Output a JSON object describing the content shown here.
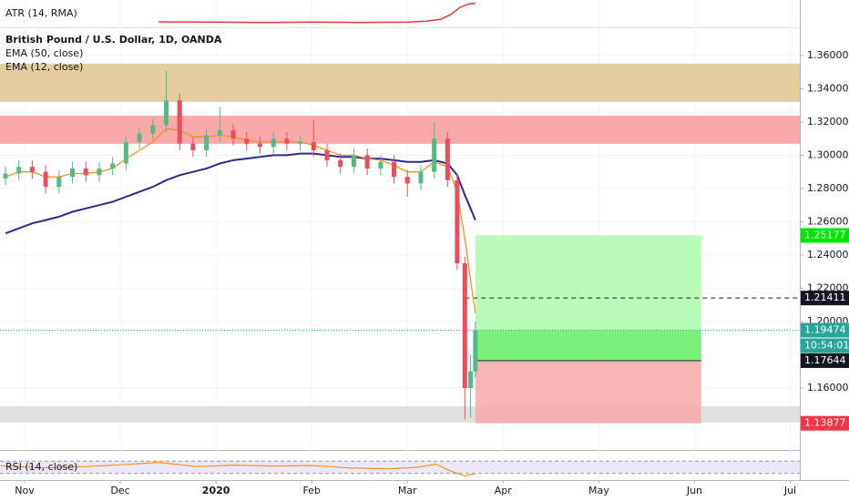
{
  "chart_data": {
    "type": "candlestick",
    "title": "British Pound / U.S. Dollar, 1D, OANDA",
    "x": [
      -0.2,
      -0.06,
      0.08,
      0.22,
      0.36,
      0.5,
      0.64,
      0.78,
      0.92,
      1.06,
      1.2,
      1.34,
      1.48,
      1.62,
      1.76,
      1.9,
      2.04,
      2.18,
      2.32,
      2.46,
      2.6,
      2.74,
      2.88,
      3.02,
      3.16,
      3.3,
      3.44,
      3.58,
      3.72,
      3.86,
      4.0,
      4.14,
      4.28,
      4.42,
      4.52,
      4.6,
      4.66,
      4.71
    ],
    "open": [
      1.286,
      1.289,
      1.293,
      1.29,
      1.281,
      1.287,
      1.292,
      1.288,
      1.292,
      1.295,
      1.308,
      1.313,
      1.318,
      1.333,
      1.307,
      1.303,
      1.312,
      1.315,
      1.31,
      1.307,
      1.305,
      1.31,
      1.307,
      1.308,
      1.303,
      1.297,
      1.293,
      1.3,
      1.292,
      1.296,
      1.287,
      1.283,
      1.29,
      1.31,
      1.285,
      1.235,
      1.16,
      1.17
    ],
    "high": [
      1.293,
      1.297,
      1.297,
      1.294,
      1.291,
      1.296,
      1.296,
      1.296,
      1.299,
      1.312,
      1.317,
      1.322,
      1.351,
      1.337,
      1.311,
      1.316,
      1.329,
      1.319,
      1.314,
      1.311,
      1.314,
      1.314,
      1.312,
      1.321,
      1.307,
      1.301,
      1.304,
      1.304,
      1.3,
      1.3,
      1.291,
      1.294,
      1.32,
      1.314,
      1.289,
      1.239,
      1.18,
      1.2
    ],
    "low": [
      1.282,
      1.285,
      1.286,
      1.277,
      1.277,
      1.283,
      1.284,
      1.284,
      1.288,
      1.291,
      1.304,
      1.309,
      1.314,
      1.303,
      1.299,
      1.299,
      1.308,
      1.306,
      1.303,
      1.301,
      1.301,
      1.303,
      1.303,
      1.299,
      1.293,
      1.289,
      1.289,
      1.288,
      1.288,
      1.283,
      1.275,
      1.279,
      1.286,
      1.281,
      1.231,
      1.141,
      1.142,
      1.166
    ],
    "close": [
      1.289,
      1.293,
      1.29,
      1.281,
      1.287,
      1.292,
      1.288,
      1.292,
      1.295,
      1.308,
      1.313,
      1.318,
      1.333,
      1.307,
      1.303,
      1.312,
      1.315,
      1.31,
      1.307,
      1.305,
      1.31,
      1.307,
      1.308,
      1.303,
      1.297,
      1.293,
      1.3,
      1.292,
      1.296,
      1.287,
      1.283,
      1.29,
      1.31,
      1.285,
      1.235,
      1.16,
      1.17,
      1.1947
    ],
    "up_color": "#53b987",
    "down_color": "#eb4d5c",
    "series": [
      {
        "name": "EMA (50, close)",
        "color": "#2e2a8c",
        "values": [
          1.253,
          1.256,
          1.259,
          1.261,
          1.263,
          1.266,
          1.268,
          1.27,
          1.272,
          1.275,
          1.278,
          1.281,
          1.285,
          1.288,
          1.29,
          1.292,
          1.295,
          1.297,
          1.298,
          1.299,
          1.3,
          1.3,
          1.301,
          1.301,
          1.3,
          1.299,
          1.299,
          1.298,
          1.298,
          1.297,
          1.296,
          1.296,
          1.297,
          1.295,
          1.288,
          1.276,
          1.268,
          1.261
        ]
      },
      {
        "name": "EMA (12, close)",
        "color": "#f7931a",
        "values": [
          1.287,
          1.29,
          1.29,
          1.287,
          1.287,
          1.289,
          1.289,
          1.29,
          1.292,
          1.298,
          1.303,
          1.308,
          1.316,
          1.315,
          1.311,
          1.311,
          1.312,
          1.311,
          1.309,
          1.308,
          1.308,
          1.308,
          1.308,
          1.306,
          1.303,
          1.3,
          1.3,
          1.298,
          1.297,
          1.294,
          1.29,
          1.29,
          1.296,
          1.293,
          1.278,
          1.25,
          1.225,
          1.205
        ]
      }
    ],
    "ylim": [
      1.1238,
      1.3742
    ],
    "yticks": [
      {
        "value": 1.16,
        "label": "1.16000"
      },
      {
        "value": 1.2,
        "label": "1.20000"
      },
      {
        "value": 1.22,
        "label": "1.22000"
      },
      {
        "value": 1.24,
        "label": "1.24000"
      },
      {
        "value": 1.26,
        "label": "1.26000"
      },
      {
        "value": 1.28,
        "label": "1.28000"
      },
      {
        "value": 1.3,
        "label": "1.30000"
      },
      {
        "value": 1.32,
        "label": "1.32000"
      },
      {
        "value": 1.34,
        "label": "1.34000"
      },
      {
        "value": 1.36,
        "label": "1.36000"
      }
    ],
    "xlim": [
      -0.257,
      8.1
    ],
    "xticks": [
      {
        "value": 0,
        "label": "Nov"
      },
      {
        "value": 1,
        "label": "Dec"
      },
      {
        "value": 2,
        "label": "2020"
      },
      {
        "value": 3,
        "label": "Feb"
      },
      {
        "value": 4,
        "label": "Mar"
      },
      {
        "value": 5,
        "label": "Apr"
      },
      {
        "value": 6,
        "label": "May"
      },
      {
        "value": 7,
        "label": "Jun"
      },
      {
        "value": 8,
        "label": "Jul"
      }
    ],
    "zones": [
      {
        "low": 1.3321,
        "high": 1.3551,
        "color": "#dfc68c"
      },
      {
        "low": 1.3069,
        "high": 1.3238,
        "color": "#f99a9a"
      },
      {
        "low": 1.1392,
        "high": 1.149,
        "color": "#dcdcdc"
      }
    ],
    "position": {
      "entry": 1.17644,
      "target": 1.25177,
      "stop": 1.13877,
      "x_start": 4.71,
      "x_end": 7.07
    },
    "dashed_level": 1.21411,
    "last_price": 1.19474,
    "countdown": "10:54:01",
    "atr": {
      "label": "ATR (14, RMA)",
      "color": "#e03b3b",
      "x": [
        1.4,
        2.0,
        2.5,
        3.0,
        3.5,
        4.0,
        4.2,
        4.35,
        4.45,
        4.55,
        4.65,
        4.71
      ],
      "values": [
        0.0075,
        0.0074,
        0.0073,
        0.0074,
        0.0073,
        0.0074,
        0.0078,
        0.0086,
        0.0105,
        0.0135,
        0.015,
        0.0152
      ],
      "ylim": [
        0.006,
        0.0158
      ]
    },
    "rsi": {
      "label": "RSI (14, close)",
      "color": "#f7931a",
      "band": [
        30,
        70
      ],
      "ylim": [
        0,
        100
      ],
      "x": [
        -0.25,
        0.2,
        0.6,
        1.0,
        1.4,
        1.8,
        2.2,
        2.6,
        3.0,
        3.4,
        3.8,
        4.1,
        4.3,
        4.45,
        4.6,
        4.71
      ],
      "values": [
        55,
        48,
        52,
        58,
        66,
        52,
        57,
        54,
        56,
        48,
        45,
        50,
        60,
        38,
        22,
        30
      ]
    }
  }
}
